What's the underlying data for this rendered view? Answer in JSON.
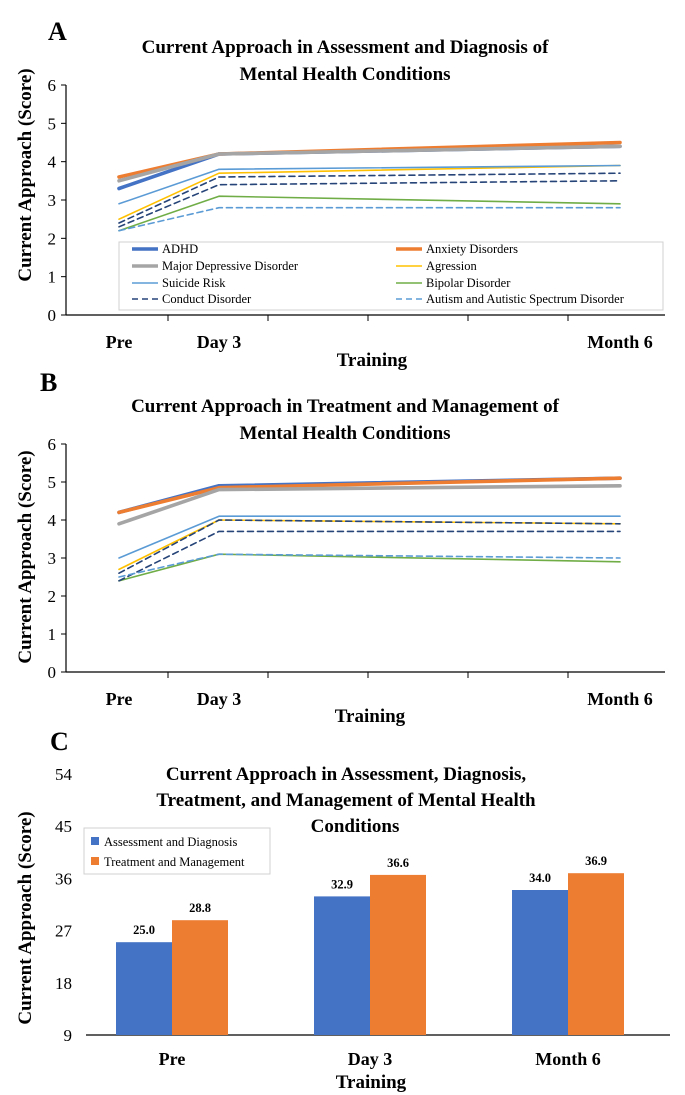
{
  "chart_data": [
    {
      "type": "line",
      "panel_label": "A",
      "title_lines": [
        "Current Approach in Assessment and Diagnosis of",
        "Mental Health Conditions"
      ],
      "xlabel": "Training",
      "ylabel": "Current Approach (Score)",
      "categories": [
        "Pre",
        "Day 3",
        "Month 6"
      ],
      "yticks": [
        "0",
        "1",
        "2",
        "3",
        "4",
        "5",
        "6"
      ],
      "ylim": [
        0,
        6
      ],
      "legend_position": "bottom-inside",
      "series": [
        {
          "name": "ADHD",
          "values": [
            3.3,
            4.2,
            4.4
          ],
          "color": "#4472C4",
          "style": "solid",
          "weight": "thick"
        },
        {
          "name": "Anxiety Disorders",
          "values": [
            3.6,
            4.2,
            4.5
          ],
          "color": "#ED7D31",
          "style": "solid",
          "weight": "thick"
        },
        {
          "name": "Major Depressive Disorder",
          "values": [
            3.5,
            4.2,
            4.4
          ],
          "color": "#A5A5A5",
          "style": "solid",
          "weight": "thick"
        },
        {
          "name": "Agression",
          "values": [
            2.5,
            3.7,
            3.9
          ],
          "color": "#FFC000",
          "style": "solid",
          "weight": "thin"
        },
        {
          "name": "Suicide Risk",
          "values": [
            2.9,
            3.8,
            3.9
          ],
          "color": "#5B9BD5",
          "style": "solid",
          "weight": "thin"
        },
        {
          "name": "Bipolar Disorder",
          "values": [
            2.2,
            3.1,
            2.9
          ],
          "color": "#70AD47",
          "style": "solid",
          "weight": "thin"
        },
        {
          "name": "Conduct Disorder",
          "values": [
            2.3,
            3.4,
            3.5
          ],
          "color": "#264478",
          "style": "dashed",
          "weight": "thin"
        },
        {
          "name": "Autism and Autistic Spectrum Disorder",
          "values": [
            2.2,
            2.8,
            2.8
          ],
          "color": "#5B9BD5",
          "style": "dashed",
          "weight": "thin"
        },
        {
          "name": "",
          "values": [
            2.4,
            3.6,
            3.7
          ],
          "color": "#264478",
          "style": "dashed",
          "weight": "thin"
        }
      ]
    },
    {
      "type": "line",
      "panel_label": "B",
      "title_lines": [
        "Current Approach in Treatment and Management of",
        "Mental Health Conditions"
      ],
      "xlabel": "Training",
      "ylabel": "Current Approach (Score)",
      "categories": [
        "Pre",
        "Day 3",
        "Month 6"
      ],
      "yticks": [
        "0",
        "1",
        "2",
        "3",
        "4",
        "5",
        "6"
      ],
      "ylim": [
        0,
        6
      ],
      "series": [
        {
          "name": "ADHD",
          "values": [
            4.2,
            4.9,
            5.1
          ],
          "color": "#4472C4",
          "style": "solid",
          "weight": "thick"
        },
        {
          "name": "Anxiety Disorders",
          "values": [
            4.2,
            4.85,
            5.1
          ],
          "color": "#ED7D31",
          "style": "solid",
          "weight": "thick"
        },
        {
          "name": "Major Depressive Disorder",
          "values": [
            3.9,
            4.8,
            4.9
          ],
          "color": "#A5A5A5",
          "style": "solid",
          "weight": "thick"
        },
        {
          "name": "Agression",
          "values": [
            2.7,
            4.0,
            3.9
          ],
          "color": "#FFC000",
          "style": "solid",
          "weight": "thin"
        },
        {
          "name": "Suicide Risk",
          "values": [
            3.0,
            4.1,
            4.1
          ],
          "color": "#5B9BD5",
          "style": "solid",
          "weight": "thin"
        },
        {
          "name": "Bipolar Disorder",
          "values": [
            2.4,
            3.1,
            2.9
          ],
          "color": "#70AD47",
          "style": "solid",
          "weight": "thin"
        },
        {
          "name": "Conduct Disorder",
          "values": [
            2.4,
            3.7,
            3.7
          ],
          "color": "#264478",
          "style": "dashed",
          "weight": "thin"
        },
        {
          "name": "Autism and Autistic Spectrum Disorder",
          "values": [
            2.5,
            3.1,
            3.0
          ],
          "color": "#5B9BD5",
          "style": "dashed",
          "weight": "thin"
        },
        {
          "name": "",
          "values": [
            2.6,
            4.0,
            3.9
          ],
          "color": "#264478",
          "style": "dashed",
          "weight": "thin"
        }
      ]
    },
    {
      "type": "bar",
      "panel_label": "C",
      "title_lines": [
        "Current Approach in Assessment, Diagnosis,",
        "Treatment, and Management of Mental Health",
        "Conditions"
      ],
      "xlabel": "Training",
      "ylabel": "Current Approach (Score)",
      "categories": [
        "Pre",
        "Day 3",
        "Month 6"
      ],
      "yticks": [
        "9",
        "18",
        "27",
        "36",
        "45",
        "54"
      ],
      "ylim": [
        9,
        54
      ],
      "legend_position": "top-left",
      "series": [
        {
          "name": "Assessment and Diagnosis",
          "values": [
            25.0,
            32.9,
            34.0
          ],
          "labels": [
            "25.0",
            "32.9",
            "34.0"
          ],
          "color": "#4472C4"
        },
        {
          "name": "Treatment and Management",
          "values": [
            28.8,
            36.6,
            36.9
          ],
          "labels": [
            "28.8",
            "36.6",
            "36.9"
          ],
          "color": "#ED7D31"
        }
      ]
    }
  ]
}
